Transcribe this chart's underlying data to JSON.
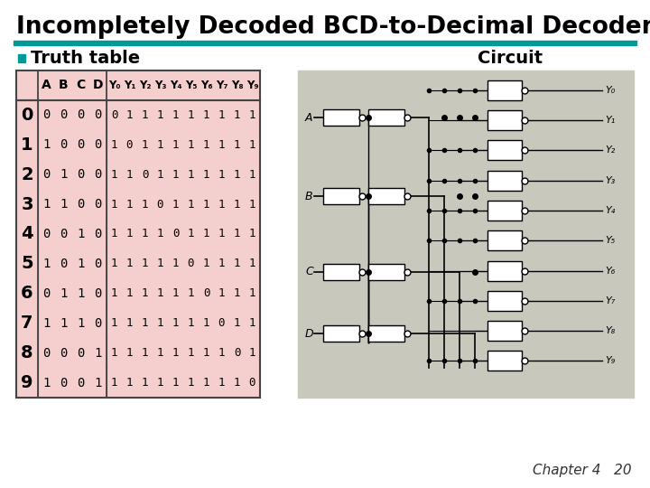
{
  "title": "Incompletely Decoded BCD-to-Decimal Decoder",
  "teal_color": "#009999",
  "section_truth": "■  Truth table",
  "section_circuit": "Circuit",
  "table_bg": "#f5cece",
  "header_labels": [
    "",
    "A",
    "B",
    "C",
    "D",
    "Y₀",
    "Y₁",
    "Y₂",
    "Y₃",
    "Y₄",
    "Y₅",
    "Y₆",
    "Y₇",
    "Y₈",
    "Y₉"
  ],
  "table_data": [
    [
      "0",
      "0",
      "0",
      "0",
      "0",
      "0",
      "1",
      "1",
      "1",
      "1",
      "1",
      "1",
      "1",
      "1",
      "1"
    ],
    [
      "1",
      "1",
      "0",
      "0",
      "0",
      "1",
      "0",
      "1",
      "1",
      "1",
      "1",
      "1",
      "1",
      "1",
      "1"
    ],
    [
      "2",
      "0",
      "1",
      "0",
      "0",
      "1",
      "1",
      "0",
      "1",
      "1",
      "1",
      "1",
      "1",
      "1",
      "1"
    ],
    [
      "3",
      "1",
      "1",
      "0",
      "0",
      "1",
      "1",
      "1",
      "0",
      "1",
      "1",
      "1",
      "1",
      "1",
      "1"
    ],
    [
      "4",
      "0",
      "0",
      "1",
      "0",
      "1",
      "1",
      "1",
      "1",
      "0",
      "1",
      "1",
      "1",
      "1",
      "1"
    ],
    [
      "5",
      "1",
      "0",
      "1",
      "0",
      "1",
      "1",
      "1",
      "1",
      "1",
      "0",
      "1",
      "1",
      "1",
      "1"
    ],
    [
      "6",
      "0",
      "1",
      "1",
      "0",
      "1",
      "1",
      "1",
      "1",
      "1",
      "1",
      "0",
      "1",
      "1",
      "1"
    ],
    [
      "7",
      "1",
      "1",
      "1",
      "0",
      "1",
      "1",
      "1",
      "1",
      "1",
      "1",
      "1",
      "0",
      "1",
      "1"
    ],
    [
      "8",
      "0",
      "0",
      "0",
      "1",
      "1",
      "1",
      "1",
      "1",
      "1",
      "1",
      "1",
      "1",
      "0",
      "1"
    ],
    [
      "9",
      "1",
      "0",
      "0",
      "1",
      "1",
      "1",
      "1",
      "1",
      "1",
      "1",
      "1",
      "1",
      "1",
      "0"
    ]
  ],
  "out_labels": [
    "Y₀",
    "Y₁",
    "Y₂",
    "Y₃",
    "Y₄",
    "Y₅",
    "Y₆",
    "Y₇",
    "Y₈",
    "Y₉"
  ],
  "input_labels": [
    "A",
    "B",
    "C",
    "D"
  ],
  "footer_text": "Chapter 4   20",
  "bg_color": "#ffffff"
}
